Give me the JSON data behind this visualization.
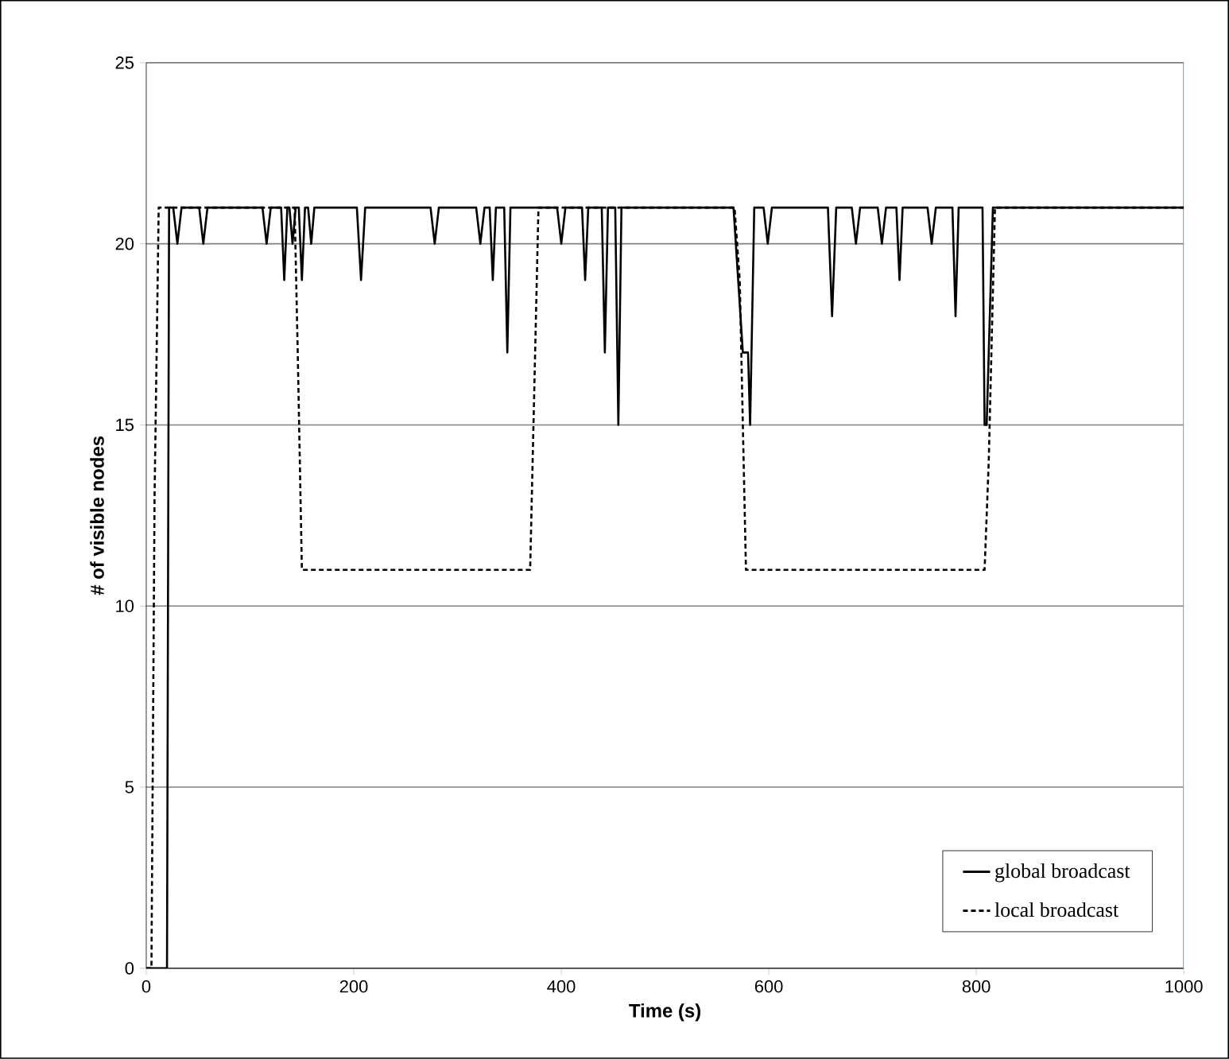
{
  "chart_data": {
    "type": "line",
    "xlabel": "Time (s)",
    "ylabel": "# of visible nodes",
    "xlim": [
      0,
      1000
    ],
    "xticks": [
      0,
      200,
      400,
      600,
      800,
      1000
    ],
    "ylim": [
      0,
      25
    ],
    "yticks": [
      0,
      5,
      10,
      15,
      20,
      25
    ],
    "grid": "y",
    "legend": "bottom right",
    "marker": "none",
    "series": [
      {
        "name": "global broadcast",
        "color": "#000000",
        "line_style": "solid",
        "x": [
          0,
          20,
          22,
          26,
          30,
          34,
          51,
          55,
          59,
          112,
          116,
          120,
          130,
          133,
          136,
          138,
          141,
          144,
          147,
          150,
          153,
          156,
          159,
          162,
          203,
          207,
          211,
          274,
          278,
          282,
          318,
          322,
          326,
          331,
          334,
          337,
          345,
          348,
          351,
          396,
          400,
          404,
          420,
          423,
          426,
          439,
          442,
          445,
          452,
          455,
          458,
          566,
          575,
          580,
          582,
          586,
          595,
          599,
          603,
          657,
          661,
          665,
          680,
          684,
          688,
          705,
          709,
          713,
          723,
          726,
          729,
          753,
          757,
          761,
          777,
          780,
          783,
          806,
          808,
          810,
          816,
          1000
        ],
        "values": [
          0,
          0,
          21,
          21,
          20,
          21,
          21,
          20,
          21,
          21,
          20,
          21,
          21,
          19,
          21,
          21,
          20,
          21,
          21,
          19,
          21,
          21,
          20,
          21,
          21,
          19,
          21,
          21,
          20,
          21,
          21,
          20,
          21,
          21,
          19,
          21,
          21,
          17,
          21,
          21,
          20,
          21,
          21,
          19,
          21,
          21,
          17,
          21,
          21,
          15,
          21,
          21,
          17,
          17,
          15,
          21,
          21,
          20,
          21,
          21,
          18,
          21,
          21,
          20,
          21,
          21,
          20,
          21,
          21,
          19,
          21,
          21,
          20,
          21,
          21,
          18,
          21,
          21,
          15,
          15,
          21,
          21
        ]
      },
      {
        "name": "local broadcast",
        "color": "#000000",
        "line_style": "dashed",
        "x": [
          0,
          5,
          8,
          12,
          143,
          146,
          150,
          370,
          378,
          567,
          572,
          578,
          808,
          812,
          818,
          1000
        ],
        "values": [
          0,
          0,
          13,
          21,
          21,
          17,
          11,
          11,
          21,
          21,
          19,
          11,
          11,
          14,
          21,
          21
        ]
      }
    ]
  }
}
